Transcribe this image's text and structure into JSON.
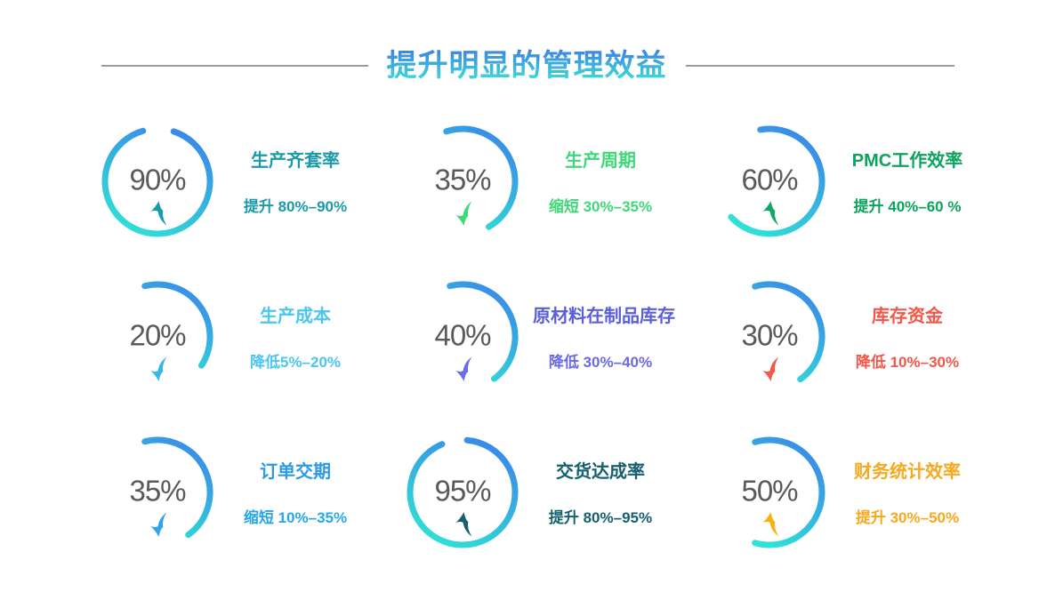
{
  "title": {
    "text": "提升明显的管理效益",
    "gradient_top": "#3D7FE3",
    "gradient_bottom": "#3BE8D8"
  },
  "chart_data": {
    "type": "bar",
    "subtype": "gauge-grid",
    "title": "提升明显的管理效益",
    "grid": [
      3,
      3
    ],
    "number_color": "#595A5C",
    "arc_gradient": {
      "from": "#3A8AE8",
      "to": "#2FE2D6"
    },
    "items": [
      {
        "value": "90%",
        "percent": 90,
        "trend": "up",
        "label": "生产齐套率",
        "desc": "提升 80%–90%",
        "label_color": "#1B9AA9",
        "desc_color": "#1B9AA9",
        "arrow_color": "#1B9AA9",
        "arc_start_deg": 18,
        "arc_sweep_deg": 326
      },
      {
        "value": "35%",
        "percent": 35,
        "trend": "down",
        "label": "生产周期",
        "desc": "缩短 30%–35%",
        "label_color": "#3FD878",
        "desc_color": "#3FD878",
        "arrow_color": "#3FD878",
        "arc_start_deg": -18,
        "arc_sweep_deg": 168
      },
      {
        "value": "60%",
        "percent": 60,
        "trend": "up",
        "label": "PMC工作效率",
        "desc": "提升 40%–60 %",
        "label_color": "#0CA35E",
        "desc_color": "#0CA35E",
        "arrow_color": "#16A766",
        "arc_start_deg": -10,
        "arc_sweep_deg": 237
      },
      {
        "value": "20%",
        "percent": 20,
        "trend": "down",
        "label": "生产成本",
        "desc": "降低5%–20%",
        "label_color": "#4AC6F0",
        "desc_color": "#4AC6F0",
        "arrow_color": "#35B6EE",
        "arc_start_deg": -14,
        "arc_sweep_deg": 137
      },
      {
        "value": "40%",
        "percent": 40,
        "trend": "down",
        "label": "原材料在制品库存",
        "desc": "降低 30%–40%",
        "label_color": "#5A5ED9",
        "desc_color": "#6A6AE3",
        "arrow_color": "#6C6CEB",
        "arc_start_deg": -14,
        "arc_sweep_deg": 157
      },
      {
        "value": "30%",
        "percent": 30,
        "trend": "down",
        "label": "库存资金",
        "desc": "降低 10%–30%",
        "label_color": "#F3574A",
        "desc_color": "#F3574A",
        "arrow_color": "#F3574A",
        "arc_start_deg": -16,
        "arc_sweep_deg": 160
      },
      {
        "value": "35%",
        "percent": 35,
        "trend": "down",
        "label": "订单交期",
        "desc": "缩短 10%–35%",
        "label_color": "#2E9AE5",
        "desc_color": "#28A7E8",
        "arrow_color": "#2FA3EC",
        "arc_start_deg": -14,
        "arc_sweep_deg": 158
      },
      {
        "value": "95%",
        "percent": 95,
        "trend": "up",
        "label": "交货达成率",
        "desc": "提升 80%–95%",
        "label_color": "#155F6E",
        "desc_color": "#155F6E",
        "arrow_color": "#155F6E",
        "arc_start_deg": 5,
        "arc_sweep_deg": 332
      },
      {
        "value": "50%",
        "percent": 50,
        "trend": "up",
        "label": "财务统计效率",
        "desc": "提升 30%–50%",
        "label_color": "#F6A91F",
        "desc_color": "#F6A91F",
        "arrow_color": "#F6B20E",
        "arc_start_deg": -16,
        "arc_sweep_deg": 212
      }
    ]
  }
}
